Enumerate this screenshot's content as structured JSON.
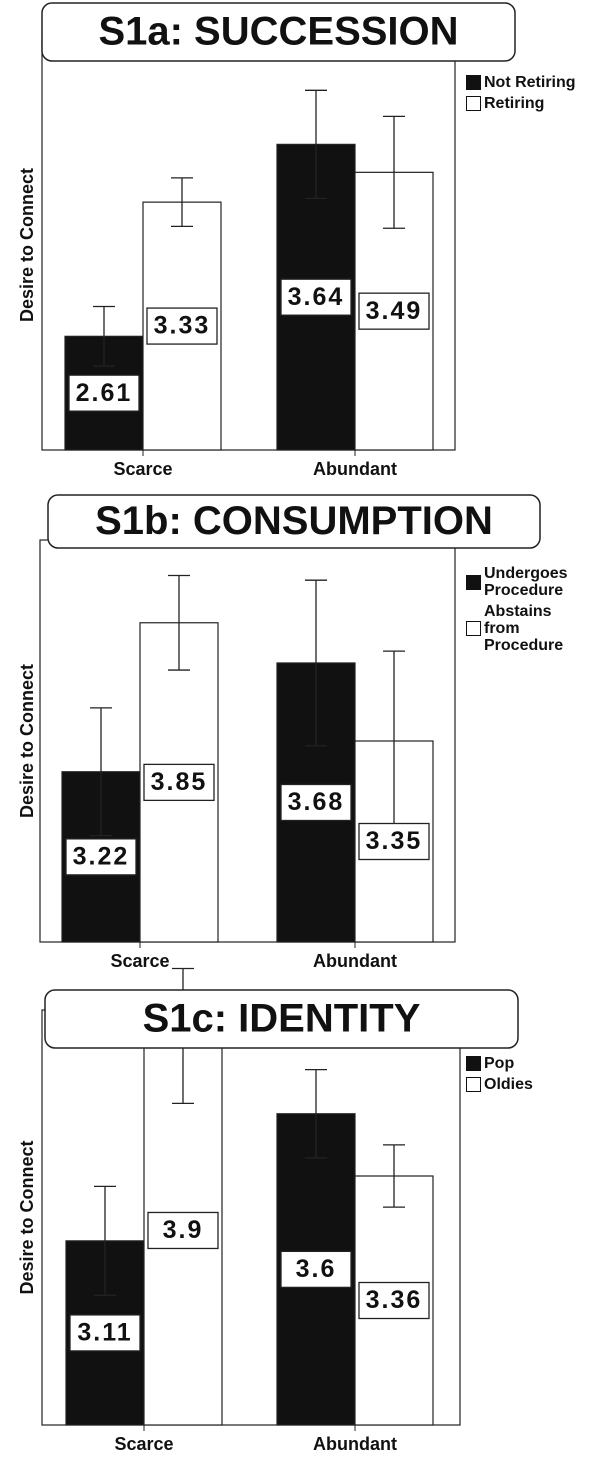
{
  "chart_data": [
    {
      "type": "bar",
      "title": "S1a: SUCCESSION",
      "ylabel": "Desire to Connect",
      "categories": [
        "Scarce",
        "Abundant"
      ],
      "series": [
        {
          "name": "Not Retiring",
          "color": "#111111",
          "values": [
            2.61,
            3.64
          ],
          "errors": [
            0.16,
            0.29
          ]
        },
        {
          "name": "Retiring",
          "color": "#ffffff",
          "values": [
            3.33,
            3.49
          ],
          "errors": [
            0.13,
            0.3
          ]
        }
      ],
      "ylim": [
        2.0,
        4.2
      ],
      "legend": "upper right"
    },
    {
      "type": "bar",
      "title": "S1b: CONSUMPTION",
      "ylabel": "Desire to Connect",
      "categories": [
        "Scarce",
        "Abundant"
      ],
      "series": [
        {
          "name": "Undergoes Procedure",
          "color": "#111111",
          "values": [
            3.22,
            3.68
          ],
          "errors": [
            0.27,
            0.35
          ]
        },
        {
          "name": "Abstains from Procedure",
          "color": "#ffffff",
          "values": [
            3.85,
            3.35
          ],
          "errors": [
            0.2,
            0.38
          ]
        }
      ],
      "ylim": [
        2.5,
        4.2
      ],
      "legend": "upper right"
    },
    {
      "type": "bar",
      "title": "S1c: IDENTITY",
      "ylabel": "Desire to Connect",
      "categories": [
        "Scarce",
        "Abundant"
      ],
      "series": [
        {
          "name": "Pop",
          "color": "#111111",
          "values": [
            3.11,
            3.6
          ],
          "errors": [
            0.21,
            0.17
          ]
        },
        {
          "name": "Oldies",
          "color": "#ffffff",
          "values": [
            3.9,
            3.36
          ],
          "errors": [
            0.26,
            0.12
          ]
        }
      ],
      "ylim": [
        2.4,
        4.0
      ],
      "legend": "upper right"
    }
  ]
}
